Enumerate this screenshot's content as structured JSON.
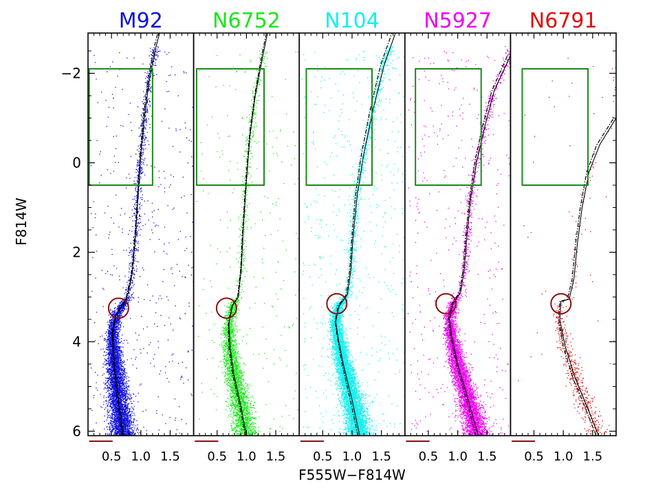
{
  "chart_data": {
    "type": "scatter",
    "xlabel": "F555W−F814W",
    "ylabel": "F814W",
    "xlim": [
      0.1,
      1.9
    ],
    "ylim": [
      6.1,
      -2.9
    ],
    "y_reversed": true,
    "yticks": [
      {
        "value": -2,
        "label": "−2"
      },
      {
        "value": 0,
        "label": "0"
      },
      {
        "value": 2,
        "label": "2"
      },
      {
        "value": 4,
        "label": "4"
      },
      {
        "value": 6,
        "label": "6"
      }
    ],
    "xticks": [
      {
        "value": 0.5,
        "label": "0.5"
      },
      {
        "value": 1.0,
        "label": "1.0"
      },
      {
        "value": 1.5,
        "label": "1.5"
      }
    ],
    "panels": [
      {
        "name": "M92",
        "color": "#1010e0",
        "density": 1.0,
        "red_giant_branch_box": {
          "x": [
            0.12,
            1.2
          ],
          "y": [
            -2.1,
            0.5
          ]
        },
        "turnoff_circle": {
          "x": 0.62,
          "y": 3.25,
          "r_color": 0.17
        },
        "isochrone_solid": [
          [
            0.7,
            6.1
          ],
          [
            0.62,
            5.3
          ],
          [
            0.55,
            4.5
          ],
          [
            0.52,
            3.8
          ],
          [
            0.58,
            3.4
          ],
          [
            0.76,
            3.05
          ],
          [
            0.85,
            2.5
          ],
          [
            0.9,
            1.8
          ],
          [
            0.96,
            0.6
          ],
          [
            1.0,
            -0.2
          ],
          [
            1.06,
            -1.0
          ],
          [
            1.14,
            -1.8
          ],
          [
            1.25,
            -2.55
          ],
          [
            1.32,
            -2.9
          ]
        ],
        "isochrone_dashed": [
          [
            0.68,
            6.1
          ],
          [
            0.6,
            5.3
          ],
          [
            0.53,
            4.5
          ],
          [
            0.51,
            3.8
          ],
          [
            0.57,
            3.4
          ],
          [
            0.74,
            3.05
          ],
          [
            0.84,
            2.5
          ],
          [
            0.89,
            1.8
          ],
          [
            0.95,
            0.6
          ],
          [
            0.99,
            -0.2
          ],
          [
            1.04,
            -1.0
          ],
          [
            1.12,
            -1.8
          ],
          [
            1.22,
            -2.55
          ],
          [
            1.29,
            -2.9
          ]
        ]
      },
      {
        "name": "N6752",
        "color": "#18e818",
        "density": 0.55,
        "red_giant_branch_box": {
          "x": [
            0.15,
            1.3
          ],
          "y": [
            -2.1,
            0.5
          ]
        },
        "turnoff_circle": {
          "x": 0.66,
          "y": 3.25,
          "r_color": 0.17
        },
        "isochrone_solid": [
          [
            1.0,
            6.1
          ],
          [
            0.9,
            5.4
          ],
          [
            0.78,
            4.7
          ],
          [
            0.72,
            4.1
          ],
          [
            0.7,
            3.6
          ],
          [
            0.76,
            3.2
          ],
          [
            0.86,
            3.0
          ],
          [
            0.91,
            2.4
          ],
          [
            0.95,
            1.4
          ],
          [
            1.0,
            0.4
          ],
          [
            1.06,
            -0.6
          ],
          [
            1.15,
            -1.5
          ],
          [
            1.28,
            -2.4
          ],
          [
            1.36,
            -2.9
          ]
        ],
        "isochrone_dashed": [
          [
            0.98,
            6.1
          ],
          [
            0.88,
            5.4
          ],
          [
            0.76,
            4.7
          ],
          [
            0.7,
            4.1
          ],
          [
            0.69,
            3.6
          ],
          [
            0.75,
            3.2
          ],
          [
            0.85,
            3.0
          ],
          [
            0.9,
            2.4
          ],
          [
            0.94,
            1.4
          ],
          [
            0.99,
            0.4
          ],
          [
            1.05,
            -0.6
          ],
          [
            1.14,
            -1.5
          ],
          [
            1.26,
            -2.4
          ],
          [
            1.34,
            -2.9
          ]
        ]
      },
      {
        "name": "N104",
        "color": "#14f0f0",
        "density": 1.2,
        "red_giant_branch_box": {
          "x": [
            0.22,
            1.34
          ],
          "y": [
            -2.1,
            0.5
          ]
        },
        "turnoff_circle": {
          "x": 0.74,
          "y": 3.15,
          "r_color": 0.17
        },
        "isochrone_solid": [
          [
            1.13,
            6.1
          ],
          [
            1.0,
            5.3
          ],
          [
            0.85,
            4.5
          ],
          [
            0.76,
            3.9
          ],
          [
            0.72,
            3.55
          ],
          [
            0.78,
            3.2
          ],
          [
            0.92,
            2.95
          ],
          [
            0.98,
            2.4
          ],
          [
            1.02,
            1.6
          ],
          [
            1.09,
            0.7
          ],
          [
            1.2,
            -0.2
          ],
          [
            1.36,
            -1.2
          ],
          [
            1.55,
            -2.2
          ],
          [
            1.74,
            -2.9
          ]
        ],
        "isochrone_dashed": [
          [
            1.1,
            6.1
          ],
          [
            0.97,
            5.3
          ],
          [
            0.83,
            4.5
          ],
          [
            0.75,
            3.9
          ],
          [
            0.71,
            3.55
          ],
          [
            0.76,
            3.2
          ],
          [
            0.9,
            2.95
          ],
          [
            0.96,
            2.4
          ],
          [
            1.0,
            1.6
          ],
          [
            1.06,
            0.7
          ],
          [
            1.16,
            -0.2
          ],
          [
            1.31,
            -1.2
          ],
          [
            1.49,
            -2.2
          ],
          [
            1.68,
            -2.9
          ]
        ]
      },
      {
        "name": "N5927",
        "color": "#f000f0",
        "density": 0.85,
        "red_giant_branch_box": {
          "x": [
            0.28,
            1.4
          ],
          "y": [
            -2.1,
            0.5
          ]
        },
        "turnoff_circle": {
          "x": 0.8,
          "y": 3.15,
          "r_color": 0.17
        },
        "isochrone_solid": [
          [
            1.35,
            6.1
          ],
          [
            1.18,
            5.3
          ],
          [
            1.0,
            4.5
          ],
          [
            0.9,
            3.9
          ],
          [
            0.86,
            3.5
          ],
          [
            0.92,
            3.15
          ],
          [
            1.05,
            2.9
          ],
          [
            1.11,
            2.4
          ],
          [
            1.16,
            1.6
          ],
          [
            1.22,
            0.8
          ],
          [
            1.32,
            0.0
          ],
          [
            1.46,
            -0.8
          ],
          [
            1.62,
            -1.6
          ],
          [
            1.9,
            -2.4
          ]
        ],
        "isochrone_dashed": [
          [
            1.31,
            6.1
          ],
          [
            1.15,
            5.3
          ],
          [
            0.98,
            4.5
          ],
          [
            0.88,
            3.9
          ],
          [
            0.84,
            3.5
          ],
          [
            0.9,
            3.15
          ],
          [
            1.03,
            2.9
          ],
          [
            1.09,
            2.4
          ],
          [
            1.14,
            1.6
          ],
          [
            1.2,
            0.8
          ],
          [
            1.29,
            0.0
          ],
          [
            1.42,
            -0.8
          ],
          [
            1.58,
            -1.6
          ],
          [
            1.85,
            -2.4
          ]
        ]
      },
      {
        "name": "N6791",
        "color": "#e01010",
        "density": 0.1,
        "red_giant_branch_box": {
          "x": [
            0.3,
            1.42
          ],
          "y": [
            -2.1,
            0.5
          ]
        },
        "turnoff_circle": {
          "x": 0.96,
          "y": 3.15,
          "r_color": 0.17
        },
        "isochrone_solid": [
          [
            1.6,
            6.1
          ],
          [
            1.42,
            5.5
          ],
          [
            1.2,
            4.8
          ],
          [
            1.03,
            4.1
          ],
          [
            0.94,
            3.5
          ],
          [
            0.96,
            3.1
          ],
          [
            1.1,
            3.05
          ],
          [
            1.18,
            2.6
          ],
          [
            1.24,
            1.8
          ],
          [
            1.32,
            1.0
          ],
          [
            1.44,
            0.2
          ],
          [
            1.62,
            -0.4
          ],
          [
            1.9,
            -1.0
          ]
        ],
        "isochrone_dashed": [
          [
            1.56,
            6.1
          ],
          [
            1.38,
            5.5
          ],
          [
            1.16,
            4.8
          ],
          [
            1.0,
            4.1
          ],
          [
            0.92,
            3.5
          ],
          [
            0.94,
            3.1
          ],
          [
            1.07,
            3.05
          ],
          [
            1.15,
            2.6
          ],
          [
            1.21,
            1.8
          ],
          [
            1.29,
            1.0
          ],
          [
            1.4,
            0.2
          ],
          [
            1.57,
            -0.4
          ],
          [
            1.86,
            -1.0
          ]
        ]
      }
    ]
  }
}
